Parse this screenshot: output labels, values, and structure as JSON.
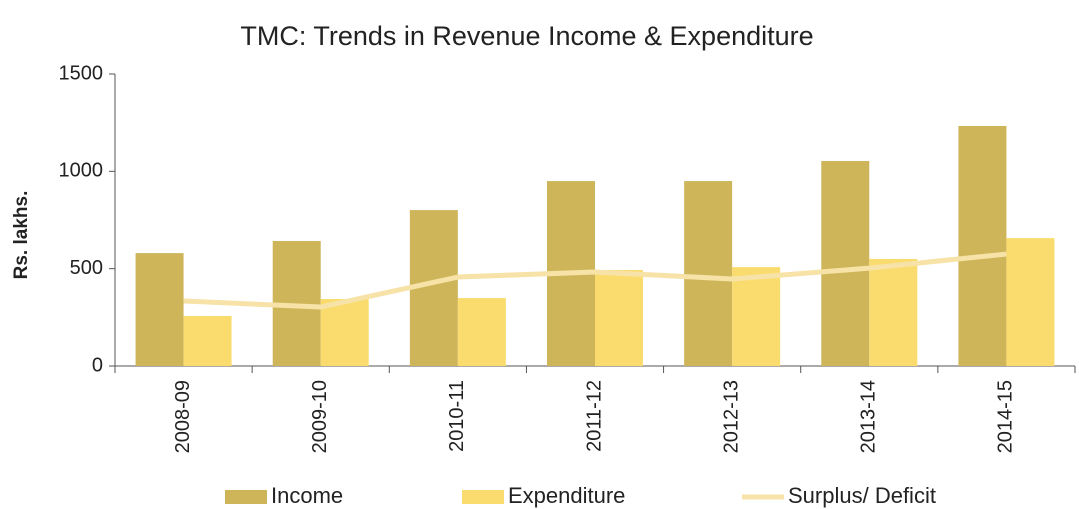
{
  "chart_data": {
    "type": "bar",
    "title": "TMC: Trends in Revenue Income & Expenditure",
    "y_label": "Rs. lakhs.",
    "categories": [
      "2008-09",
      "2009-10",
      "2010-11",
      "2011-12",
      "2012-13",
      "2013-14",
      "2014-15"
    ],
    "series": [
      {
        "name": "Income",
        "color": "#cfb55a",
        "type": "bar",
        "values": [
          580,
          642,
          801,
          950,
          950,
          1053,
          1233
        ]
      },
      {
        "name": "Expenditure",
        "color": "#fadc6e",
        "type": "bar",
        "values": [
          257,
          344,
          349,
          493,
          508,
          550,
          657
        ]
      },
      {
        "name": "Surplus/ Deficit",
        "color": "#f7e3a8",
        "type": "line",
        "values": [
          334,
          303,
          457,
          483,
          447,
          503,
          575
        ]
      }
    ],
    "ylim": [
      0,
      1500
    ],
    "yticks": [
      0,
      500,
      1000,
      1500
    ],
    "grid": false
  }
}
